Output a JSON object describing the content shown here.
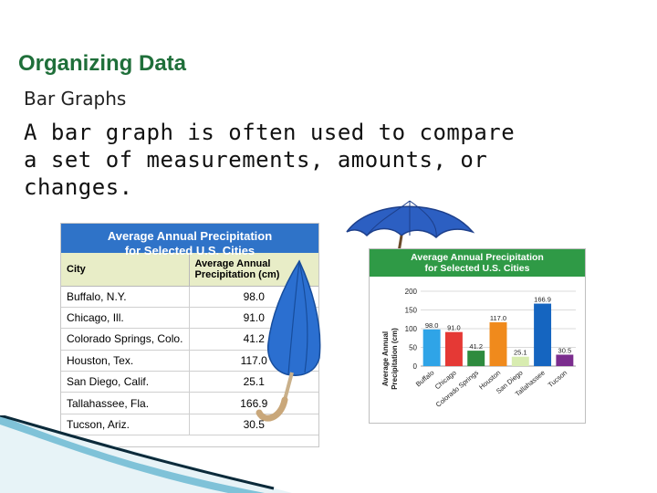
{
  "slide": {
    "title": "Organizing Data",
    "subtitle": "Bar Graphs",
    "body": "A bar graph is often used to compare a set of measurements, amounts, or changes."
  },
  "table": {
    "title_line1": "Average Annual Precipitation",
    "title_line2": "for Selected U.S. Cities",
    "col_city": "City",
    "col_precip_line1": "Average Annual",
    "col_precip_line2": "Precipitation (cm)",
    "rows": [
      {
        "city": "Buffalo, N.Y.",
        "value": "98.0"
      },
      {
        "city": "Chicago, Ill.",
        "value": "91.0"
      },
      {
        "city": "Colorado Springs, Colo.",
        "value": "41.2"
      },
      {
        "city": "Houston, Tex.",
        "value": "117.0"
      },
      {
        "city": "San Diego, Calif.",
        "value": "25.1"
      },
      {
        "city": "Tallahassee, Fla.",
        "value": "166.9"
      },
      {
        "city": "Tucson, Ariz.",
        "value": "30.5"
      }
    ]
  },
  "chart_data": {
    "type": "bar",
    "title_line1": "Average Annual Precipitation",
    "title_line2": "for Selected U.S. Cities",
    "ylabel_line1": "Average Annual",
    "ylabel_line2": "Precipitation (cm)",
    "ylim": [
      0,
      200
    ],
    "yticks": [
      0,
      50,
      100,
      150,
      200
    ],
    "grid": true,
    "categories": [
      "Buffalo",
      "Chicago",
      "Colorado Springs",
      "Houston",
      "San Diego",
      "Tallahassee",
      "Tucson"
    ],
    "values": [
      98.0,
      91.0,
      41.2,
      117.0,
      25.1,
      166.9,
      30.5
    ],
    "value_labels": [
      "98.0",
      "91.0",
      "41.2",
      "117.0",
      "25.1",
      "166.9",
      "30.5"
    ],
    "colors": [
      "#2fa4e7",
      "#e53935",
      "#2e8b3e",
      "#f08a1c",
      "#d8ecb0",
      "#1565c0",
      "#7b2d8e"
    ]
  },
  "colors": {
    "title_green": "#1f6f3a",
    "table_header_blue": "#2f73c8",
    "column_header_tint": "#e8edc7",
    "chart_header_green": "#2f9a46"
  },
  "decor": {
    "umbrella_left": "umbrella-icon",
    "umbrella_right": "umbrella-icon",
    "stripe": "teal-stripe"
  }
}
